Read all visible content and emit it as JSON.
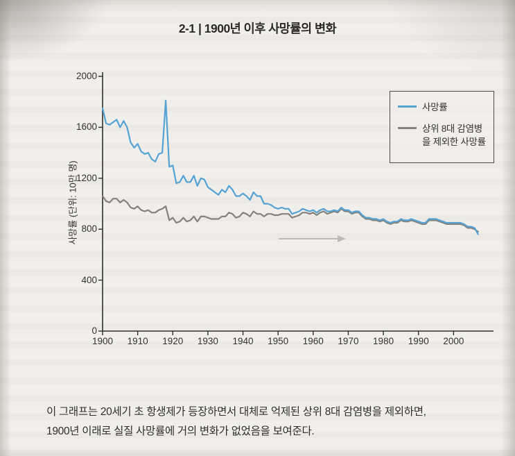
{
  "page": {
    "title": "2-1 | 1900년 이후 사망률의 변화",
    "caption_line1": "이 그래프는 20세기 초 항생제가 등장하면서 대체로 억제된 상위 8대 감염병을 제외하면,",
    "caption_line2": "1900년 이래로 실질 사망률에 거의 변화가 없었음을 보여준다."
  },
  "chart_data": {
    "type": "line",
    "title": "2-1 | 1900년 이후 사망률의 변화",
    "xlabel": "",
    "ylabel": "사망률 (단위: 10만 명)",
    "xlim": [
      1900,
      2010
    ],
    "ylim": [
      0,
      2000
    ],
    "yticks": [
      0,
      400,
      800,
      1200,
      1600,
      2000
    ],
    "xticks": [
      1900,
      1910,
      1920,
      1930,
      1940,
      1950,
      1960,
      1970,
      1980,
      1990,
      2000
    ],
    "grid": false,
    "legend_position": "top-right",
    "axis_color": "#2e2d29",
    "text_color": "#33322e",
    "series": [
      {
        "name": "사망률",
        "color": "#55a2d4",
        "x": [
          1900,
          1901,
          1902,
          1903,
          1904,
          1905,
          1906,
          1907,
          1908,
          1909,
          1910,
          1911,
          1912,
          1913,
          1914,
          1915,
          1916,
          1917,
          1918,
          1919,
          1920,
          1921,
          1922,
          1923,
          1924,
          1925,
          1926,
          1927,
          1928,
          1929,
          1930,
          1931,
          1932,
          1933,
          1934,
          1935,
          1936,
          1937,
          1938,
          1939,
          1940,
          1941,
          1942,
          1943,
          1944,
          1945,
          1946,
          1947,
          1948,
          1949,
          1950,
          1951,
          1952,
          1953,
          1954,
          1955,
          1956,
          1957,
          1958,
          1959,
          1960,
          1961,
          1962,
          1963,
          1964,
          1965,
          1966,
          1967,
          1968,
          1969,
          1970,
          1971,
          1972,
          1973,
          1974,
          1975,
          1976,
          1977,
          1978,
          1979,
          1980,
          1981,
          1982,
          1983,
          1984,
          1985,
          1986,
          1987,
          1988,
          1989,
          1990,
          1991,
          1992,
          1993,
          1994,
          1995,
          1996,
          1997,
          1998,
          1999,
          2000,
          2001,
          2002,
          2003,
          2004,
          2005,
          2006,
          2007
        ],
        "y": [
          1750,
          1630,
          1620,
          1640,
          1660,
          1600,
          1650,
          1600,
          1480,
          1440,
          1470,
          1410,
          1390,
          1400,
          1350,
          1330,
          1390,
          1400,
          1810,
          1290,
          1300,
          1160,
          1170,
          1220,
          1170,
          1170,
          1220,
          1140,
          1200,
          1190,
          1130,
          1110,
          1090,
          1070,
          1110,
          1090,
          1140,
          1110,
          1060,
          1060,
          1080,
          1060,
          1030,
          1090,
          1060,
          1060,
          1000,
          1000,
          990,
          970,
          960,
          970,
          960,
          960,
          920,
          930,
          940,
          960,
          950,
          940,
          950,
          930,
          950,
          960,
          940,
          940,
          950,
          940,
          970,
          950,
          950,
          930,
          940,
          940,
          910,
          890,
          890,
          880,
          880,
          870,
          880,
          860,
          850,
          860,
          860,
          880,
          870,
          870,
          880,
          870,
          860,
          850,
          850,
          880,
          880,
          880,
          870,
          860,
          850,
          850,
          850,
          850,
          850,
          840,
          820,
          820,
          810,
          760
        ]
      },
      {
        "name": "상위 8대 감염병을 제외한 사망률",
        "color": "#84827c",
        "x": [
          1900,
          1901,
          1902,
          1903,
          1904,
          1905,
          1906,
          1907,
          1908,
          1909,
          1910,
          1911,
          1912,
          1913,
          1914,
          1915,
          1916,
          1917,
          1918,
          1919,
          1920,
          1921,
          1922,
          1923,
          1924,
          1925,
          1926,
          1927,
          1928,
          1929,
          1930,
          1931,
          1932,
          1933,
          1934,
          1935,
          1936,
          1937,
          1938,
          1939,
          1940,
          1941,
          1942,
          1943,
          1944,
          1945,
          1946,
          1947,
          1948,
          1949,
          1950,
          1951,
          1952,
          1953,
          1954,
          1955,
          1956,
          1957,
          1958,
          1959,
          1960,
          1961,
          1962,
          1963,
          1964,
          1965,
          1966,
          1967,
          1968,
          1969,
          1970,
          1971,
          1972,
          1973,
          1974,
          1975,
          1976,
          1977,
          1978,
          1979,
          1980,
          1981,
          1982,
          1983,
          1984,
          1985,
          1986,
          1987,
          1988,
          1989,
          1990,
          1991,
          1992,
          1993,
          1994,
          1995,
          1996,
          1997,
          1998,
          1999,
          2000,
          2001,
          2002,
          2003,
          2004,
          2005,
          2006,
          2007
        ],
        "y": [
          1060,
          1020,
          1010,
          1040,
          1040,
          1010,
          1030,
          1010,
          970,
          960,
          980,
          950,
          940,
          950,
          930,
          930,
          950,
          960,
          980,
          870,
          890,
          850,
          860,
          890,
          860,
          870,
          900,
          860,
          900,
          900,
          890,
          880,
          880,
          880,
          900,
          900,
          930,
          920,
          890,
          900,
          930,
          920,
          900,
          940,
          920,
          920,
          900,
          920,
          920,
          910,
          910,
          920,
          920,
          920,
          890,
          900,
          910,
          930,
          930,
          920,
          930,
          910,
          930,
          940,
          920,
          930,
          940,
          930,
          960,
          940,
          940,
          920,
          930,
          930,
          900,
          880,
          880,
          870,
          870,
          860,
          870,
          850,
          840,
          850,
          850,
          870,
          860,
          860,
          870,
          860,
          850,
          840,
          840,
          870,
          870,
          870,
          860,
          850,
          840,
          840,
          840,
          840,
          840,
          830,
          810,
          810,
          800,
          780
        ]
      }
    ]
  }
}
